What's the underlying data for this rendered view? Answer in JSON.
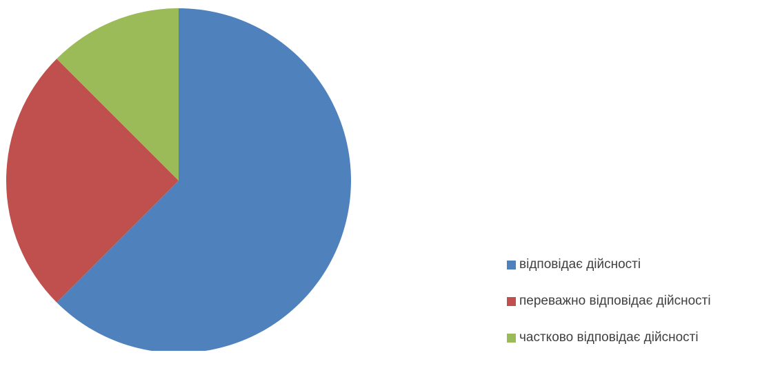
{
  "chart_data": {
    "type": "pie",
    "title": "",
    "categories": [
      "відповідає дійсності",
      "переважно відповідає дійсності",
      "частково відповідає дійсності"
    ],
    "values": [
      62.5,
      25,
      12.5
    ],
    "colors": [
      "#4f81bd",
      "#c0504d",
      "#9bbb59"
    ],
    "start_angle_deg": 0,
    "direction": "clockwise",
    "legend": "right-bottom"
  }
}
